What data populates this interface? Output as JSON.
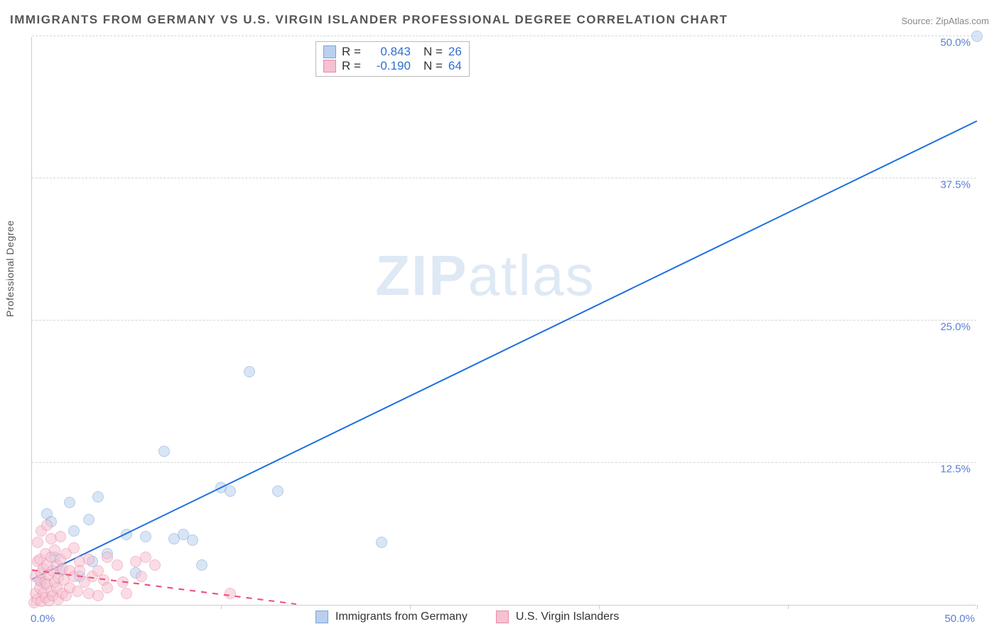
{
  "title": "IMMIGRANTS FROM GERMANY VS U.S. VIRGIN ISLANDER PROFESSIONAL DEGREE CORRELATION CHART",
  "source_prefix": "Source: ",
  "source_name": "ZipAtlas.com",
  "ylabel": "Professional Degree",
  "watermark_a": "ZIP",
  "watermark_b": "atlas",
  "chart": {
    "type": "scatter",
    "xlim": [
      0,
      50
    ],
    "ylim": [
      0,
      50
    ],
    "x_ticks": [
      10,
      20,
      30,
      40,
      50
    ],
    "y_ticks": [
      12.5,
      25.0,
      37.5,
      50.0
    ],
    "y_tick_labels": [
      "12.5%",
      "25.0%",
      "37.5%",
      "50.0%"
    ],
    "x_origin_label": "0.0%",
    "x_max_label": "50.0%",
    "grid_color": "#d5d5d5",
    "axis_color": "#cccccc",
    "background_color": "#ffffff",
    "tick_label_color": "#5a7fd6",
    "marker_radius": 8,
    "marker_stroke_width": 1.5,
    "series": [
      {
        "name": "Immigrants from Germany",
        "fill": "#b9d0ee",
        "stroke": "#7aa3d9",
        "fill_opacity": 0.55,
        "R": "0.843",
        "N": "26",
        "trend": {
          "x1": 0,
          "y1": 2.2,
          "x2": 50,
          "y2": 42.5,
          "color": "#1f6fe0",
          "width": 2,
          "dash": "solid"
        },
        "points": [
          [
            0.5,
            2.0
          ],
          [
            0.8,
            8.0
          ],
          [
            1.0,
            7.3
          ],
          [
            1.2,
            4.2
          ],
          [
            1.5,
            3.0
          ],
          [
            2.0,
            9.0
          ],
          [
            2.2,
            6.5
          ],
          [
            2.5,
            2.5
          ],
          [
            3.0,
            7.5
          ],
          [
            3.2,
            3.8
          ],
          [
            3.5,
            9.5
          ],
          [
            4.0,
            4.5
          ],
          [
            5.0,
            6.2
          ],
          [
            5.5,
            2.8
          ],
          [
            6.0,
            6.0
          ],
          [
            7.0,
            13.5
          ],
          [
            7.5,
            5.8
          ],
          [
            8.0,
            6.2
          ],
          [
            8.5,
            5.7
          ],
          [
            9.0,
            3.5
          ],
          [
            10.0,
            10.3
          ],
          [
            10.5,
            10.0
          ],
          [
            11.5,
            20.5
          ],
          [
            13.0,
            10.0
          ],
          [
            18.5,
            5.5
          ],
          [
            50.0,
            50.0
          ]
        ]
      },
      {
        "name": "U.S. Virgin Islanders",
        "fill": "#f6c1d1",
        "stroke": "#e88aa8",
        "fill_opacity": 0.55,
        "R": "-0.190",
        "N": "64",
        "trend": {
          "x1": 0,
          "y1": 3.0,
          "x2": 14,
          "y2": 0.0,
          "color": "#ef4f7a",
          "width": 2,
          "dash": "dashed"
        },
        "points": [
          [
            0.1,
            0.2
          ],
          [
            0.2,
            1.0
          ],
          [
            0.2,
            2.5
          ],
          [
            0.3,
            0.5
          ],
          [
            0.3,
            3.8
          ],
          [
            0.3,
            5.5
          ],
          [
            0.4,
            1.5
          ],
          [
            0.4,
            2.2
          ],
          [
            0.4,
            4.0
          ],
          [
            0.5,
            0.3
          ],
          [
            0.5,
            2.8
          ],
          [
            0.5,
            6.5
          ],
          [
            0.6,
            1.0
          ],
          [
            0.6,
            3.2
          ],
          [
            0.7,
            0.6
          ],
          [
            0.7,
            2.0
          ],
          [
            0.7,
            4.5
          ],
          [
            0.8,
            1.8
          ],
          [
            0.8,
            3.5
          ],
          [
            0.8,
            7.0
          ],
          [
            0.9,
            0.4
          ],
          [
            0.9,
            2.6
          ],
          [
            1.0,
            1.2
          ],
          [
            1.0,
            4.2
          ],
          [
            1.0,
            5.8
          ],
          [
            1.1,
            0.8
          ],
          [
            1.1,
            3.0
          ],
          [
            1.2,
            2.0
          ],
          [
            1.2,
            4.8
          ],
          [
            1.3,
            1.5
          ],
          [
            1.3,
            3.5
          ],
          [
            1.4,
            0.5
          ],
          [
            1.4,
            2.4
          ],
          [
            1.5,
            4.0
          ],
          [
            1.5,
            6.0
          ],
          [
            1.6,
            1.0
          ],
          [
            1.6,
            3.2
          ],
          [
            1.7,
            2.2
          ],
          [
            1.8,
            0.8
          ],
          [
            1.8,
            4.5
          ],
          [
            2.0,
            1.5
          ],
          [
            2.0,
            3.0
          ],
          [
            2.2,
            2.5
          ],
          [
            2.2,
            5.0
          ],
          [
            2.4,
            1.2
          ],
          [
            2.5,
            3.8
          ],
          [
            2.5,
            3.0
          ],
          [
            2.8,
            2.0
          ],
          [
            3.0,
            1.0
          ],
          [
            3.0,
            4.0
          ],
          [
            3.2,
            2.5
          ],
          [
            3.5,
            0.8
          ],
          [
            3.5,
            3.0
          ],
          [
            3.8,
            2.2
          ],
          [
            4.0,
            1.5
          ],
          [
            4.0,
            4.2
          ],
          [
            4.5,
            3.5
          ],
          [
            4.8,
            2.0
          ],
          [
            5.0,
            1.0
          ],
          [
            5.5,
            3.8
          ],
          [
            5.8,
            2.5
          ],
          [
            6.0,
            4.2
          ],
          [
            6.5,
            3.5
          ],
          [
            10.5,
            1.0
          ]
        ]
      }
    ]
  },
  "legend_top": {
    "r_label": "R",
    "n_label": "N",
    "eq": "=",
    "value_color": "#2f6fd0"
  },
  "legend_bottom": {
    "items": [
      "Immigrants from Germany",
      "U.S. Virgin Islanders"
    ]
  }
}
